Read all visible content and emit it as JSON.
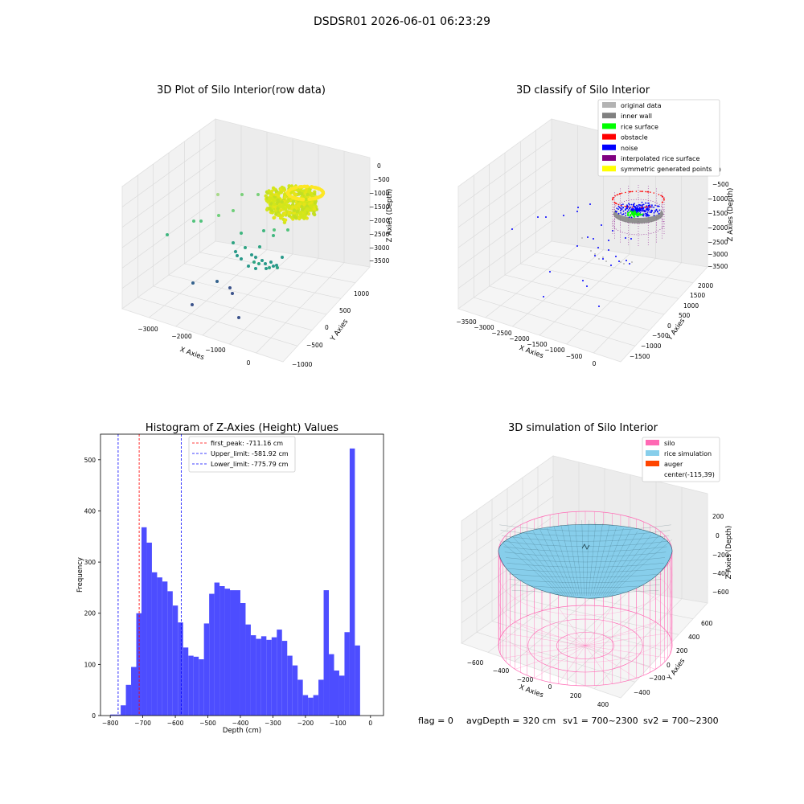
{
  "figure": {
    "title": "DSDSR01 2026-06-01 06:23:29",
    "footer": {
      "flag": "flag = 0",
      "avg_depth": "avgDepth = 320 cm",
      "sv1": "sv1 = 700~2300",
      "sv2": "sv2 = 700~2300"
    }
  },
  "colors": {
    "original_data": "#b3b3b3",
    "inner_wall": "#808080",
    "rice_surface": "#00ff00",
    "obstacle": "#ff0000",
    "noise": "#0000ff",
    "interpolated_rice_surface": "#800080",
    "symmetric_generated_points": "#ffff00",
    "histogram_bar": "#4d4dff",
    "silo": "#ff69b4",
    "rice_simulation": "#87ceeb",
    "auger": "#ff4500"
  },
  "chart_data": [
    {
      "type": "scatter3d",
      "title": "3D Plot of Silo Interior(row data)",
      "xlabel": "X Axies",
      "ylabel": "Y Axies",
      "zlabel": "Z Axies (Depth)",
      "x_ticks": [
        "−3000",
        "−2000",
        "−1000",
        "0"
      ],
      "y_ticks": [
        "−1000",
        "−500",
        "0",
        "500",
        "1000"
      ],
      "z_ticks": [
        "0",
        "−500",
        "−1000",
        "−1500",
        "−2000",
        "−2500",
        "−3000",
        "−3500"
      ],
      "colormap": "viridis",
      "grid": true
    },
    {
      "type": "scatter3d",
      "title": "3D classify of Silo Interior",
      "xlabel": "X Axies",
      "ylabel": "Y Axies",
      "zlabel": "Z Axies (Depth)",
      "x_ticks": [
        "−3500",
        "−3000",
        "−2500",
        "−2000",
        "−1500",
        "−1000",
        "−500",
        "0"
      ],
      "y_ticks": [
        "−1500",
        "−1000",
        "−500",
        "0",
        "500",
        "1000",
        "1500",
        "2000"
      ],
      "z_ticks": [
        "0",
        "−500",
        "−1000",
        "−1500",
        "−2000",
        "−2500",
        "−3000",
        "−3500"
      ],
      "legend_position": "top-right",
      "legend": [
        "original data",
        "inner wall",
        "rice surface",
        "obstacle",
        "noise",
        "interpolated rice surface",
        "symmetric generated points"
      ],
      "grid": true
    },
    {
      "type": "bar",
      "title": "Histogram of Z-Axies (Height) Values",
      "xlabel": "Depth (cm)",
      "ylabel": "Frequency",
      "xlim": [
        -830,
        40
      ],
      "ylim": [
        0,
        550
      ],
      "x_ticks": [
        "−800",
        "−700",
        "−600",
        "−500",
        "−400",
        "−300",
        "−200",
        "−100",
        "0"
      ],
      "y_ticks": [
        "0",
        "100",
        "200",
        "300",
        "400",
        "500"
      ],
      "bin_start": -800,
      "bin_width": 16,
      "values": [
        2,
        2,
        20,
        60,
        95,
        200,
        368,
        338,
        280,
        270,
        262,
        243,
        215,
        182,
        133,
        117,
        115,
        110,
        180,
        238,
        260,
        253,
        248,
        245,
        245,
        220,
        178,
        157,
        150,
        155,
        148,
        153,
        168,
        146,
        117,
        98,
        70,
        40,
        35,
        40,
        70,
        245,
        120,
        88,
        78,
        163,
        522,
        137
      ],
      "lines": [
        {
          "label": "first_peak: -711.16 cm",
          "x": -711.16,
          "color": "#ff0000"
        },
        {
          "label": "Upper_limit: -581.92 cm",
          "x": -581.92,
          "color": "#0000ff"
        },
        {
          "label": "Lower_limit: -775.79 cm",
          "x": -775.79,
          "color": "#0000ff"
        }
      ],
      "legend_position": "top-center"
    },
    {
      "type": "surface3d",
      "title": "3D simulation of Silo Interior",
      "xlabel": "X Axies",
      "ylabel": "Y Axies",
      "zlabel": "Z Axies (Depth)",
      "x_ticks": [
        "−600",
        "−400",
        "−200",
        "0",
        "200",
        "400"
      ],
      "y_ticks": [
        "−400",
        "−200",
        "0",
        "200",
        "400",
        "600"
      ],
      "z_ticks": [
        "200",
        "0",
        "−200",
        "−400",
        "−600"
      ],
      "legend_position": "top-right",
      "legend": [
        "silo",
        "rice simulation",
        "auger",
        "center(-115,39)"
      ],
      "grid": true
    }
  ]
}
